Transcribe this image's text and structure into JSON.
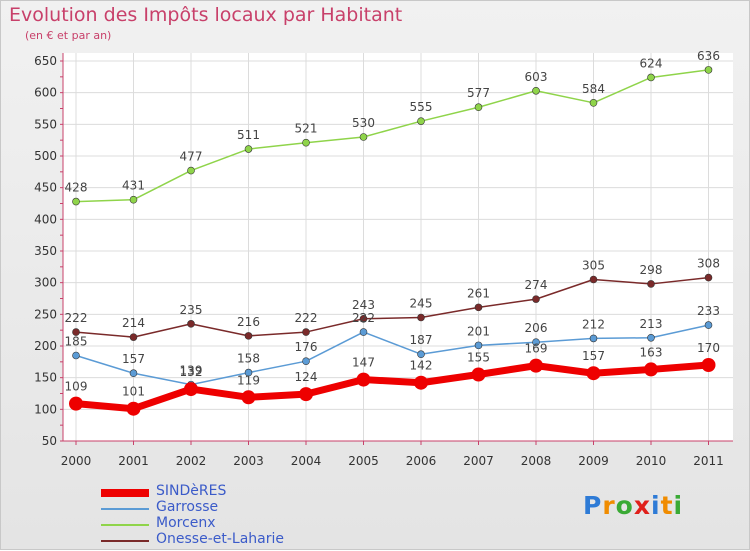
{
  "title": "Evolution des Impôts locaux par Habitant",
  "subtitle": "(en € et par an)",
  "logo": "Proxiti",
  "colors": {
    "title": "#c8406a",
    "legend_text": "#3b5bc9",
    "axis": "#c8406a"
  },
  "chart_data": {
    "type": "line",
    "title": "Evolution des Impôts locaux par Habitant",
    "subtitle": "(en € et par an)",
    "xlabel": "",
    "ylabel": "",
    "x": [
      "2000",
      "2001",
      "2002",
      "2003",
      "2004",
      "2005",
      "2006",
      "2007",
      "2008",
      "2009",
      "2010",
      "2011"
    ],
    "ylim": [
      50,
      650
    ],
    "yticks": [
      50,
      100,
      150,
      200,
      250,
      300,
      350,
      400,
      450,
      500,
      550,
      600,
      650
    ],
    "grid": true,
    "legend_position": "bottom-left",
    "series": [
      {
        "name": "SINDèRES",
        "color": "#ee0000",
        "values": [
          109,
          101,
          132,
          119,
          124,
          147,
          142,
          155,
          169,
          157,
          163,
          170
        ]
      },
      {
        "name": "Garrosse",
        "color": "#5b9bd5",
        "values": [
          185,
          157,
          139,
          158,
          176,
          222,
          187,
          201,
          206,
          212,
          213,
          233
        ]
      },
      {
        "name": "Morcenx",
        "color": "#8fd44a",
        "values": [
          428,
          431,
          477,
          511,
          521,
          530,
          555,
          577,
          603,
          584,
          624,
          636
        ]
      },
      {
        "name": "Onesse-et-Laharie",
        "color": "#7a2a2a",
        "values": [
          222,
          214,
          235,
          216,
          222,
          243,
          245,
          261,
          274,
          305,
          298,
          308
        ]
      }
    ]
  }
}
